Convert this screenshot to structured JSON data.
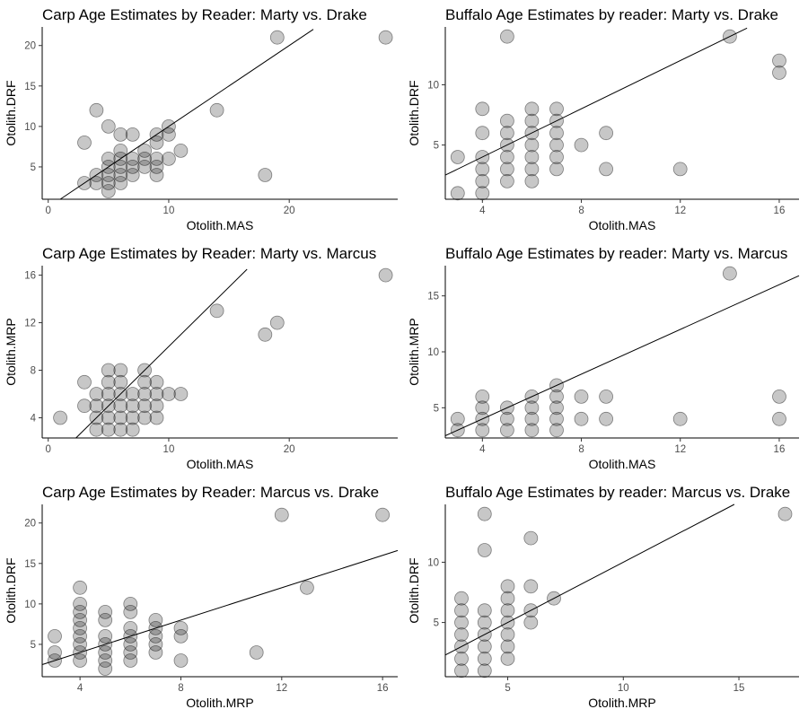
{
  "chart_data": [
    {
      "type": "scatter",
      "title": "Carp Age Estimates by Reader: Marty vs. Drake",
      "xlabel": "Otolith.MAS",
      "ylabel": "Otolith.DRF",
      "xlim": [
        -0.5,
        29
      ],
      "ylim": [
        1,
        22.3
      ],
      "xticks": [
        0,
        10,
        20
      ],
      "yticks": [
        5,
        10,
        15,
        20
      ],
      "fit": [
        [
          1,
          1
        ],
        [
          22,
          22
        ]
      ],
      "points": [
        [
          3,
          3
        ],
        [
          3,
          8
        ],
        [
          4,
          3
        ],
        [
          4,
          4
        ],
        [
          4,
          12
        ],
        [
          5,
          2
        ],
        [
          5,
          3
        ],
        [
          5,
          4
        ],
        [
          5,
          5
        ],
        [
          5,
          6
        ],
        [
          5,
          10
        ],
        [
          6,
          3
        ],
        [
          6,
          4
        ],
        [
          6,
          5
        ],
        [
          6,
          6
        ],
        [
          6,
          7
        ],
        [
          6,
          9
        ],
        [
          7,
          4
        ],
        [
          7,
          5
        ],
        [
          7,
          6
        ],
        [
          7,
          9
        ],
        [
          8,
          5
        ],
        [
          8,
          6
        ],
        [
          8,
          7
        ],
        [
          9,
          4
        ],
        [
          9,
          5
        ],
        [
          9,
          6
        ],
        [
          9,
          8
        ],
        [
          9,
          9
        ],
        [
          10,
          6
        ],
        [
          10,
          9
        ],
        [
          10,
          10
        ],
        [
          11,
          7
        ],
        [
          14,
          12
        ],
        [
          18,
          4
        ],
        [
          19,
          21
        ],
        [
          28,
          21
        ]
      ]
    },
    {
      "type": "scatter",
      "title": "Buffalo Age Estimates by reader: Marty vs. Drake",
      "xlabel": "Otolith.MAS",
      "ylabel": "Otolith.DRF",
      "xlim": [
        2.5,
        16.8
      ],
      "ylim": [
        0.5,
        14.8
      ],
      "xticks": [
        4,
        8,
        12,
        16
      ],
      "yticks": [
        5,
        10
      ],
      "fit": [
        [
          2.5,
          2.5
        ],
        [
          14.7,
          14.7
        ]
      ],
      "points": [
        [
          3,
          1
        ],
        [
          3,
          4
        ],
        [
          4,
          1
        ],
        [
          4,
          2
        ],
        [
          4,
          3
        ],
        [
          4,
          4
        ],
        [
          4,
          6
        ],
        [
          4,
          8
        ],
        [
          5,
          2
        ],
        [
          5,
          3
        ],
        [
          5,
          4
        ],
        [
          5,
          5
        ],
        [
          5,
          6
        ],
        [
          5,
          7
        ],
        [
          5,
          14
        ],
        [
          6,
          2
        ],
        [
          6,
          3
        ],
        [
          6,
          4
        ],
        [
          6,
          5
        ],
        [
          6,
          6
        ],
        [
          6,
          7
        ],
        [
          6,
          8
        ],
        [
          7,
          3
        ],
        [
          7,
          4
        ],
        [
          7,
          5
        ],
        [
          7,
          6
        ],
        [
          7,
          7
        ],
        [
          7,
          8
        ],
        [
          8,
          5
        ],
        [
          9,
          3
        ],
        [
          9,
          6
        ],
        [
          12,
          3
        ],
        [
          14,
          14
        ],
        [
          16,
          11
        ],
        [
          16,
          12
        ]
      ]
    },
    {
      "type": "scatter",
      "title": "Carp Age Estimates by Reader: Marty vs. Marcus",
      "xlabel": "Otolith.MAS",
      "ylabel": "Otolith.MRP",
      "xlim": [
        -0.5,
        29
      ],
      "ylim": [
        2.3,
        16.8
      ],
      "xticks": [
        0,
        10,
        20
      ],
      "yticks": [
        4,
        8,
        12,
        16
      ],
      "fit": [
        [
          2.3,
          2.3
        ],
        [
          16.5,
          16.5
        ]
      ],
      "points": [
        [
          1,
          4
        ],
        [
          3,
          5
        ],
        [
          3,
          7
        ],
        [
          4,
          3
        ],
        [
          4,
          4
        ],
        [
          4,
          5
        ],
        [
          4,
          6
        ],
        [
          5,
          3
        ],
        [
          5,
          4
        ],
        [
          5,
          5
        ],
        [
          5,
          6
        ],
        [
          5,
          7
        ],
        [
          5,
          8
        ],
        [
          6,
          3
        ],
        [
          6,
          4
        ],
        [
          6,
          5
        ],
        [
          6,
          6
        ],
        [
          6,
          7
        ],
        [
          6,
          8
        ],
        [
          7,
          3
        ],
        [
          7,
          4
        ],
        [
          7,
          5
        ],
        [
          7,
          6
        ],
        [
          8,
          4
        ],
        [
          8,
          5
        ],
        [
          8,
          6
        ],
        [
          8,
          7
        ],
        [
          8,
          8
        ],
        [
          9,
          4
        ],
        [
          9,
          5
        ],
        [
          9,
          6
        ],
        [
          9,
          7
        ],
        [
          10,
          6
        ],
        [
          11,
          6
        ],
        [
          14,
          13
        ],
        [
          18,
          11
        ],
        [
          19,
          12
        ],
        [
          28,
          16
        ]
      ]
    },
    {
      "type": "scatter",
      "title": "Buffalo Age Estimates by reader: Marty vs. Marcus",
      "xlabel": "Otolith.MAS",
      "ylabel": "Otolith.MRP",
      "xlim": [
        2.5,
        16.8
      ],
      "ylim": [
        2.3,
        17.7
      ],
      "xticks": [
        4,
        8,
        12,
        16
      ],
      "yticks": [
        5,
        10,
        15
      ],
      "fit": [
        [
          2.5,
          2.5
        ],
        [
          16.8,
          16.8
        ]
      ],
      "points": [
        [
          3,
          3
        ],
        [
          3,
          4
        ],
        [
          4,
          3
        ],
        [
          4,
          4
        ],
        [
          4,
          5
        ],
        [
          4,
          6
        ],
        [
          5,
          3
        ],
        [
          5,
          4
        ],
        [
          5,
          5
        ],
        [
          6,
          3
        ],
        [
          6,
          4
        ],
        [
          6,
          5
        ],
        [
          6,
          6
        ],
        [
          7,
          3
        ],
        [
          7,
          4
        ],
        [
          7,
          5
        ],
        [
          7,
          6
        ],
        [
          7,
          7
        ],
        [
          8,
          4
        ],
        [
          8,
          6
        ],
        [
          9,
          4
        ],
        [
          9,
          6
        ],
        [
          12,
          4
        ],
        [
          14,
          17
        ],
        [
          16,
          4
        ],
        [
          16,
          6
        ]
      ]
    },
    {
      "type": "scatter",
      "title": "Carp Age Estimates by Reader: Marcus vs. Drake",
      "xlabel": "Otolith.MRP",
      "ylabel": "Otolith.DRF",
      "xlim": [
        2.5,
        16.6
      ],
      "ylim": [
        1,
        22.3
      ],
      "xticks": [
        4,
        8,
        12,
        16
      ],
      "yticks": [
        5,
        10,
        15,
        20
      ],
      "fit": [
        [
          2.5,
          2.5
        ],
        [
          16.6,
          16.6
        ]
      ],
      "points": [
        [
          3,
          3
        ],
        [
          3,
          4
        ],
        [
          3,
          6
        ],
        [
          4,
          3
        ],
        [
          4,
          4
        ],
        [
          4,
          5
        ],
        [
          4,
          6
        ],
        [
          4,
          7
        ],
        [
          4,
          8
        ],
        [
          4,
          9
        ],
        [
          4,
          10
        ],
        [
          4,
          12
        ],
        [
          5,
          2
        ],
        [
          5,
          3
        ],
        [
          5,
          4
        ],
        [
          5,
          5
        ],
        [
          5,
          6
        ],
        [
          5,
          8
        ],
        [
          5,
          9
        ],
        [
          6,
          3
        ],
        [
          6,
          4
        ],
        [
          6,
          5
        ],
        [
          6,
          6
        ],
        [
          6,
          7
        ],
        [
          6,
          9
        ],
        [
          6,
          10
        ],
        [
          7,
          4
        ],
        [
          7,
          5
        ],
        [
          7,
          6
        ],
        [
          7,
          7
        ],
        [
          7,
          8
        ],
        [
          8,
          3
        ],
        [
          8,
          6
        ],
        [
          8,
          7
        ],
        [
          11,
          4
        ],
        [
          12,
          21
        ],
        [
          13,
          12
        ],
        [
          16,
          21
        ]
      ]
    },
    {
      "type": "scatter",
      "title": "Buffalo Age Estimates by reader: Marcus vs. Drake",
      "xlabel": "Otolith.MRP",
      "ylabel": "Otolith.DRF",
      "xlim": [
        2.3,
        17.6
      ],
      "ylim": [
        0.5,
        14.8
      ],
      "xticks": [
        5,
        10,
        15
      ],
      "yticks": [
        5,
        10
      ],
      "fit": [
        [
          2.3,
          2.3
        ],
        [
          14.8,
          14.8
        ]
      ],
      "points": [
        [
          3,
          1
        ],
        [
          3,
          2
        ],
        [
          3,
          3
        ],
        [
          3,
          4
        ],
        [
          3,
          5
        ],
        [
          3,
          6
        ],
        [
          3,
          7
        ],
        [
          4,
          1
        ],
        [
          4,
          2
        ],
        [
          4,
          3
        ],
        [
          4,
          4
        ],
        [
          4,
          5
        ],
        [
          4,
          6
        ],
        [
          4,
          11
        ],
        [
          4,
          14
        ],
        [
          5,
          2
        ],
        [
          5,
          3
        ],
        [
          5,
          4
        ],
        [
          5,
          5
        ],
        [
          5,
          6
        ],
        [
          5,
          7
        ],
        [
          5,
          8
        ],
        [
          6,
          5
        ],
        [
          6,
          6
        ],
        [
          6,
          8
        ],
        [
          6,
          12
        ],
        [
          7,
          7
        ],
        [
          17,
          14
        ]
      ]
    }
  ]
}
